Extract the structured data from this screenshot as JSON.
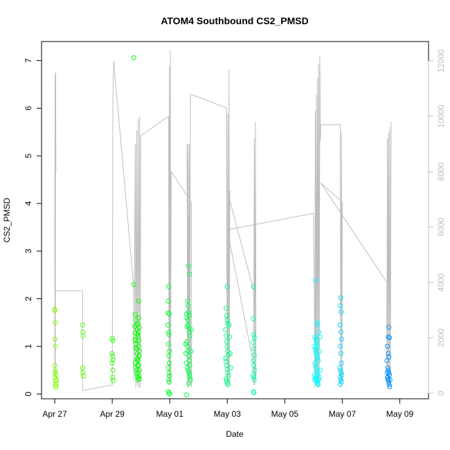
{
  "chart_data": {
    "type": "scatter",
    "title": "ATOM4 Southbound CS2_PMSD",
    "xlabel": "Date",
    "ylabel": "CS2_PMSD",
    "x_ticks": [
      {
        "day": 0,
        "label": "Apr 27"
      },
      {
        "day": 2,
        "label": "Apr 29"
      },
      {
        "day": 4,
        "label": "May 01"
      },
      {
        "day": 6,
        "label": "May 03"
      },
      {
        "day": 8,
        "label": "May 05"
      },
      {
        "day": 10,
        "label": "May 07"
      },
      {
        "day": 12,
        "label": "May 09"
      }
    ],
    "xlim_days": [
      -0.46,
      13.0
    ],
    "ylim": [
      -0.1,
      7.4
    ],
    "y_ticks": [
      0,
      1,
      2,
      3,
      4,
      5,
      6,
      7
    ],
    "y2lim": [
      -200,
      12700
    ],
    "y2_ticks": [
      0,
      2000,
      4000,
      6000,
      8000,
      10000,
      12000
    ],
    "y2_color": "#bdbdbd",
    "series": [
      {
        "kind": "points",
        "points": [
          [
            0.0,
            1.78
          ],
          [
            0.0,
            1.75
          ],
          [
            0.02,
            1.5
          ],
          [
            0.0,
            1.15
          ],
          [
            0.03,
            1.0
          ],
          [
            0.0,
            0.6
          ],
          [
            0.02,
            0.5
          ],
          [
            0.04,
            0.4
          ],
          [
            0.0,
            0.35
          ],
          [
            0.03,
            0.28
          ],
          [
            0.05,
            0.22
          ],
          [
            0.02,
            0.18
          ],
          [
            0.04,
            0.14
          ],
          [
            0.06,
            0.3
          ],
          [
            0.01,
            0.45
          ],
          [
            0.97,
            1.45
          ],
          [
            0.98,
            1.3
          ],
          [
            0.99,
            1.22
          ],
          [
            0.97,
            0.55
          ],
          [
            0.98,
            0.45
          ],
          [
            1.0,
            0.38
          ],
          [
            2.0,
            1.17
          ],
          [
            2.02,
            1.12
          ],
          [
            1.99,
            0.85
          ],
          [
            2.01,
            0.8
          ],
          [
            2.03,
            0.72
          ],
          [
            2.0,
            0.65
          ],
          [
            2.02,
            0.5
          ],
          [
            2.01,
            0.35
          ],
          [
            2.03,
            0.28
          ],
          [
            2.75,
            7.06
          ],
          [
            2.75,
            2.3
          ],
          [
            2.8,
            1.67
          ],
          [
            2.82,
            1.55
          ],
          [
            2.84,
            1.45
          ],
          [
            2.86,
            1.35
          ],
          [
            2.88,
            1.25
          ],
          [
            2.8,
            1.15
          ],
          [
            2.82,
            1.05
          ],
          [
            2.84,
            0.95
          ],
          [
            2.86,
            0.85
          ],
          [
            2.88,
            0.75
          ],
          [
            2.8,
            0.65
          ],
          [
            2.82,
            0.55
          ],
          [
            2.84,
            0.5
          ],
          [
            2.86,
            0.42
          ],
          [
            2.88,
            0.35
          ],
          [
            2.9,
            0.3
          ],
          [
            2.92,
            1.95
          ],
          [
            2.92,
            1.6
          ],
          [
            2.94,
            1.4
          ],
          [
            2.9,
            1.2
          ],
          [
            2.92,
            1.0
          ],
          [
            2.94,
            0.8
          ],
          [
            2.9,
            0.7
          ],
          [
            2.92,
            0.6
          ],
          [
            2.94,
            0.5
          ],
          [
            2.9,
            0.45
          ],
          [
            2.93,
            0.38
          ],
          [
            2.95,
            0.32
          ],
          [
            2.78,
            1.42
          ],
          [
            2.79,
            1.28
          ],
          [
            2.81,
            1.12
          ],
          [
            2.83,
            0.98
          ],
          [
            2.85,
            0.72
          ],
          [
            2.87,
            0.6
          ],
          [
            2.89,
            1.48
          ],
          [
            2.91,
            1.3
          ],
          [
            2.93,
            1.12
          ],
          [
            2.95,
            0.9
          ],
          [
            3.96,
            2.26
          ],
          [
            3.95,
            1.95
          ],
          [
            3.98,
            1.68
          ],
          [
            3.94,
            1.45
          ],
          [
            3.97,
            1.25
          ],
          [
            3.95,
            1.05
          ],
          [
            3.99,
            0.9
          ],
          [
            3.96,
            0.8
          ],
          [
            3.98,
            0.65
          ],
          [
            3.95,
            0.55
          ],
          [
            3.97,
            0.45
          ],
          [
            3.99,
            0.38
          ],
          [
            3.96,
            0.3
          ],
          [
            3.98,
            0.25
          ],
          [
            3.95,
            0.05
          ],
          [
            3.97,
            0.02
          ],
          [
            4.0,
            0.0
          ],
          [
            3.94,
            1.7
          ],
          [
            3.96,
            1.3
          ],
          [
            4.65,
            2.69
          ],
          [
            4.68,
            2.52
          ],
          [
            4.62,
            1.95
          ],
          [
            4.64,
            1.85
          ],
          [
            4.66,
            1.72
          ],
          [
            4.68,
            1.65
          ],
          [
            4.6,
            1.6
          ],
          [
            4.62,
            1.55
          ],
          [
            4.64,
            1.45
          ],
          [
            4.66,
            1.38
          ],
          [
            4.68,
            1.3
          ],
          [
            4.7,
            1.22
          ],
          [
            4.6,
            1.1
          ],
          [
            4.62,
            1.0
          ],
          [
            4.64,
            0.9
          ],
          [
            4.66,
            0.8
          ],
          [
            4.68,
            0.7
          ],
          [
            4.7,
            0.6
          ],
          [
            4.62,
            0.55
          ],
          [
            4.64,
            0.5
          ],
          [
            4.66,
            0.45
          ],
          [
            4.68,
            0.4
          ],
          [
            4.7,
            0.35
          ],
          [
            4.72,
            0.3
          ],
          [
            4.66,
            0.22
          ],
          [
            4.58,
            1.68
          ],
          [
            4.6,
            1.42
          ],
          [
            4.74,
            0.9
          ],
          [
            4.75,
            1.35
          ],
          [
            4.55,
            1.05
          ],
          [
            4.56,
            0.85
          ],
          [
            4.57,
            0.65
          ],
          [
            4.59,
            -0.02
          ],
          [
            6.0,
            2.25
          ],
          [
            5.96,
            1.8
          ],
          [
            5.98,
            1.65
          ],
          [
            6.0,
            1.55
          ],
          [
            6.02,
            1.48
          ],
          [
            5.94,
            1.35
          ],
          [
            5.96,
            1.22
          ],
          [
            5.98,
            1.1
          ],
          [
            6.0,
            1.0
          ],
          [
            6.02,
            0.9
          ],
          [
            6.04,
            0.82
          ],
          [
            5.94,
            0.75
          ],
          [
            5.96,
            0.68
          ],
          [
            5.98,
            0.6
          ],
          [
            6.0,
            0.52
          ],
          [
            6.02,
            0.45
          ],
          [
            6.04,
            0.38
          ],
          [
            5.96,
            0.32
          ],
          [
            5.98,
            0.28
          ],
          [
            6.0,
            0.24
          ],
          [
            6.03,
            0.2
          ],
          [
            6.06,
            1.45
          ],
          [
            6.08,
            1.2
          ],
          [
            6.1,
            0.85
          ],
          [
            6.12,
            0.55
          ],
          [
            6.92,
            2.25
          ],
          [
            6.9,
            1.58
          ],
          [
            6.92,
            1.25
          ],
          [
            6.94,
            1.18
          ],
          [
            6.9,
            1.08
          ],
          [
            6.92,
            0.95
          ],
          [
            6.94,
            0.82
          ],
          [
            6.9,
            0.7
          ],
          [
            6.92,
            0.6
          ],
          [
            6.94,
            0.5
          ],
          [
            6.9,
            0.4
          ],
          [
            6.92,
            0.35
          ],
          [
            6.94,
            0.3
          ],
          [
            6.91,
            0.05
          ],
          [
            6.93,
            0.03
          ]
        ]
      },
      {
        "kind": "points",
        "points": [
          [
            9.07,
            2.39
          ],
          [
            9.12,
            1.5
          ],
          [
            9.15,
            1.45
          ],
          [
            9.05,
            1.2
          ],
          [
            9.08,
            1.15
          ],
          [
            9.1,
            1.1
          ],
          [
            9.12,
            1.05
          ],
          [
            9.14,
            1.0
          ],
          [
            9.06,
            0.95
          ],
          [
            9.08,
            0.9
          ],
          [
            9.1,
            0.85
          ],
          [
            9.12,
            0.8
          ],
          [
            9.14,
            0.75
          ],
          [
            9.16,
            0.7
          ],
          [
            9.05,
            0.65
          ],
          [
            9.07,
            0.6
          ],
          [
            9.09,
            0.55
          ],
          [
            9.11,
            0.5
          ],
          [
            9.13,
            0.45
          ],
          [
            9.15,
            0.4
          ],
          [
            9.06,
            0.35
          ],
          [
            9.08,
            0.32
          ],
          [
            9.1,
            0.28
          ],
          [
            9.12,
            0.25
          ],
          [
            9.14,
            0.22
          ],
          [
            9.16,
            0.2
          ],
          [
            9.18,
            0.3
          ],
          [
            9.2,
            0.35
          ],
          [
            9.04,
            0.4
          ],
          [
            9.03,
            0.3
          ],
          [
            9.22,
            1.2
          ],
          [
            9.18,
            1.3
          ],
          [
            9.2,
            0.9
          ],
          [
            9.24,
            0.5
          ],
          [
            9.02,
            1.0
          ],
          [
            9.95,
            2.02
          ],
          [
            9.93,
            1.85
          ],
          [
            9.96,
            1.72
          ],
          [
            9.92,
            1.45
          ],
          [
            9.95,
            1.3
          ],
          [
            9.97,
            1.15
          ],
          [
            9.93,
            1.0
          ],
          [
            9.95,
            0.85
          ],
          [
            9.97,
            0.65
          ],
          [
            9.92,
            0.55
          ],
          [
            9.94,
            0.5
          ],
          [
            9.96,
            0.45
          ],
          [
            9.98,
            0.4
          ],
          [
            9.93,
            0.35
          ],
          [
            9.95,
            0.3
          ],
          [
            9.97,
            0.25
          ],
          [
            9.92,
            0.2
          ]
        ]
      },
      {
        "kind": "points",
        "points": [
          [
            11.62,
            1.4
          ],
          [
            11.6,
            1.2
          ],
          [
            11.64,
            1.18
          ],
          [
            11.57,
            1.0
          ],
          [
            11.6,
            0.85
          ],
          [
            11.62,
            0.78
          ],
          [
            11.55,
            0.7
          ],
          [
            11.58,
            0.55
          ],
          [
            11.6,
            0.5
          ],
          [
            11.62,
            0.45
          ],
          [
            11.64,
            0.4
          ],
          [
            11.57,
            0.35
          ],
          [
            11.59,
            0.3
          ],
          [
            11.61,
            0.25
          ],
          [
            11.63,
            0.2
          ],
          [
            11.65,
            0.15
          ],
          [
            11.56,
            0.45
          ],
          [
            11.58,
            0.35
          ],
          [
            11.66,
            0.3
          ]
        ]
      }
    ],
    "grey_line": {
      "color": "#bdbdbd",
      "points": [
        [
          0.0,
          600
        ],
        [
          0.01,
          11500
        ],
        [
          0.02,
          700
        ],
        [
          0.03,
          11600
        ],
        [
          0.04,
          8000
        ],
        [
          0.0,
          8000
        ],
        [
          0.0,
          3700
        ],
        [
          0.97,
          3700
        ],
        [
          0.97,
          100
        ],
        [
          2.0,
          300
        ],
        [
          2.02,
          10500
        ],
        [
          2.05,
          12000
        ],
        [
          2.05,
          12000
        ],
        [
          2.75,
          3800
        ],
        [
          2.75,
          500
        ],
        [
          2.8,
          9000
        ],
        [
          2.82,
          200
        ],
        [
          2.85,
          9500
        ],
        [
          2.87,
          300
        ],
        [
          2.9,
          9900
        ],
        [
          2.92,
          200
        ],
        [
          2.95,
          10000
        ],
        [
          2.97,
          200
        ],
        [
          2.99,
          9300
        ],
        [
          3.96,
          10000
        ],
        [
          3.97,
          400
        ],
        [
          3.99,
          11800
        ],
        [
          4.0,
          300
        ],
        [
          4.02,
          12400
        ],
        [
          4.03,
          500
        ],
        [
          4.05,
          8000
        ],
        [
          4.75,
          6900
        ],
        [
          4.76,
          200
        ],
        [
          4.6,
          9000
        ],
        [
          4.62,
          200
        ],
        [
          4.64,
          9000
        ],
        [
          4.66,
          200
        ],
        [
          4.68,
          9000
        ],
        [
          4.7,
          300
        ],
        [
          4.72,
          10800
        ],
        [
          5.98,
          10300
        ],
        [
          5.98,
          5800
        ],
        [
          6.0,
          200
        ],
        [
          6.02,
          10100
        ],
        [
          6.04,
          600
        ],
        [
          6.06,
          11700
        ],
        [
          6.07,
          300
        ],
        [
          6.09,
          7300
        ],
        [
          6.0,
          7300
        ],
        [
          6.92,
          3700
        ],
        [
          6.92,
          300
        ],
        [
          6.94,
          9200
        ],
        [
          6.96,
          300
        ],
        [
          6.98,
          9800
        ],
        [
          7.0,
          600
        ],
        [
          6.0,
          5900
        ],
        [
          9.0,
          6500
        ],
        [
          9.05,
          200
        ],
        [
          9.06,
          10200
        ],
        [
          9.08,
          400
        ],
        [
          9.1,
          10800
        ],
        [
          9.12,
          300
        ],
        [
          9.14,
          11400
        ],
        [
          9.16,
          200
        ],
        [
          9.18,
          11900
        ],
        [
          9.2,
          400
        ],
        [
          9.22,
          12200
        ],
        [
          9.24,
          9100
        ],
        [
          9.25,
          9700
        ],
        [
          9.93,
          9700
        ],
        [
          9.93,
          9000
        ],
        [
          9.95,
          200
        ],
        [
          9.97,
          9400
        ],
        [
          9.99,
          400
        ],
        [
          10.0,
          6900
        ],
        [
          9.25,
          7600
        ],
        [
          11.55,
          4000
        ],
        [
          11.55,
          400
        ],
        [
          11.57,
          9200
        ],
        [
          11.59,
          200
        ],
        [
          11.61,
          9400
        ],
        [
          11.63,
          300
        ],
        [
          11.65,
          9600
        ],
        [
          11.67,
          200
        ],
        [
          11.7,
          9800
        ]
      ]
    },
    "colors": {
      "early": "#7fff00",
      "mid": "#00ff66",
      "late": "#00ffff",
      "end": "#0080ff",
      "axis": "#000000"
    },
    "grid": false,
    "legend": "none"
  }
}
